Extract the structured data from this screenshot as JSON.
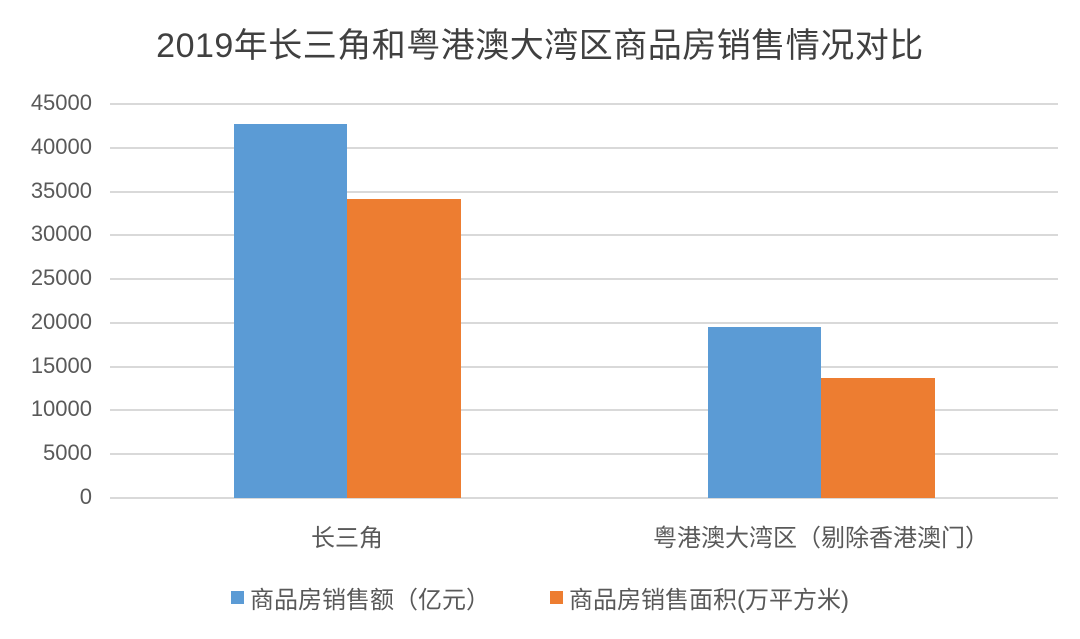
{
  "chart_data": {
    "type": "bar",
    "title": "2019年长三角和粤港澳大湾区商品房销售情况对比",
    "categories": [
      "长三角",
      "粤港澳大湾区（剔除香港澳门）"
    ],
    "series": [
      {
        "name": "商品房销售额（亿元）",
        "color": "#5B9BD5",
        "values": [
          42700,
          19550
        ]
      },
      {
        "name": "商品房销售面积(万平方米)",
        "color": "#ED7D31",
        "values": [
          34150,
          13700
        ]
      }
    ],
    "xlabel": "",
    "ylabel": "",
    "ylim": [
      0,
      45000
    ],
    "yticks": [
      "45000",
      "40000",
      "35000",
      "30000",
      "25000",
      "20000",
      "15000",
      "10000",
      "5000",
      "0"
    ],
    "grid": true,
    "legend_position": "bottom"
  }
}
